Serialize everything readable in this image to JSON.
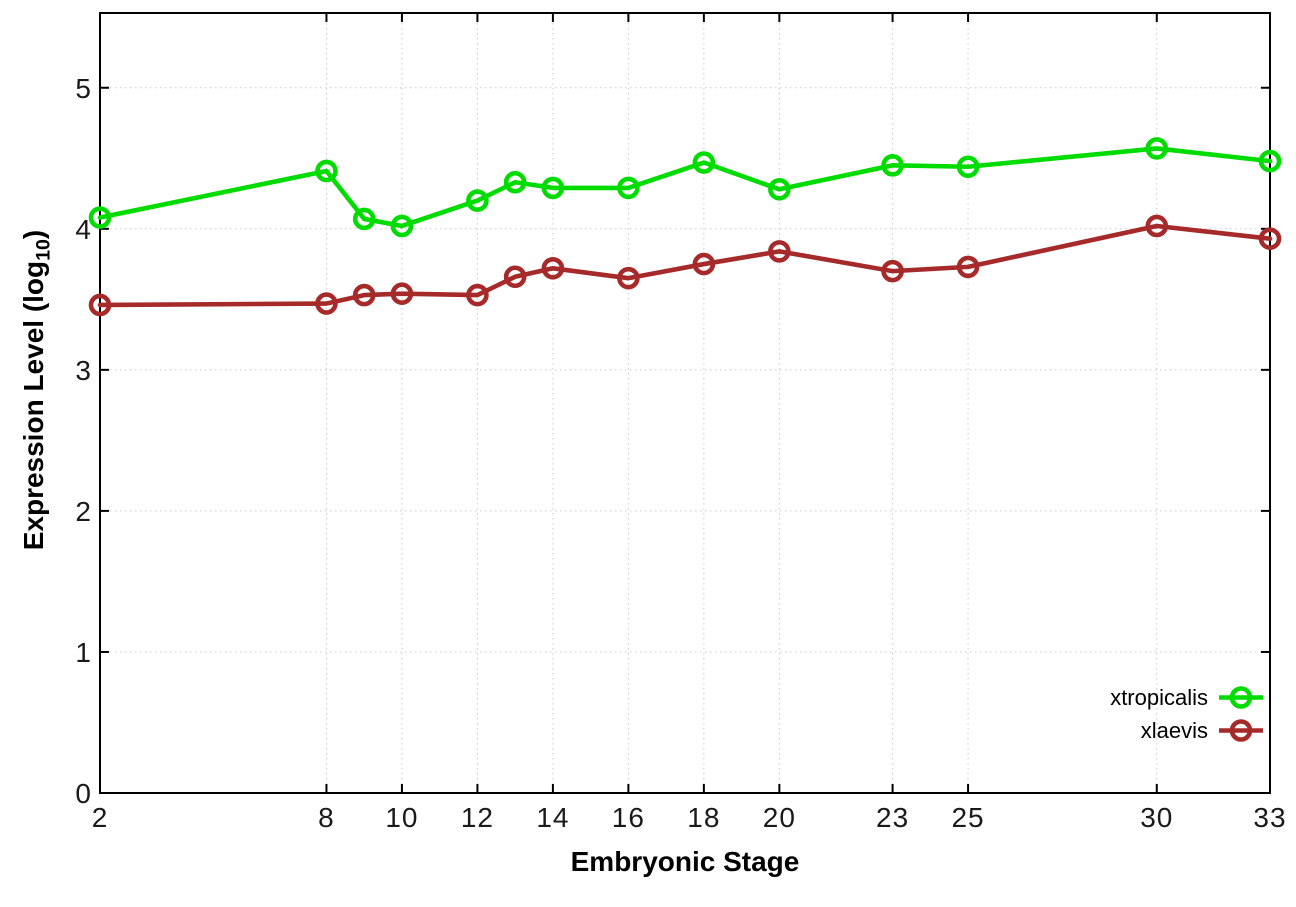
{
  "chart_data": {
    "type": "line",
    "title": "",
    "xlabel": "Embryonic Stage",
    "ylabel": "Expression Level (log10)",
    "ylabel_parts": {
      "prefix": "Expression Level (log",
      "subscript": "10",
      "suffix": ")"
    },
    "xlim": [
      2,
      33
    ],
    "ylim": [
      0,
      5.53
    ],
    "xticks": [
      2,
      8,
      10,
      12,
      14,
      16,
      18,
      20,
      23,
      25,
      30,
      33
    ],
    "yticks": [
      0,
      1,
      2,
      3,
      4,
      5
    ],
    "grid": true,
    "marker": "open-circle",
    "legend_position": "inside-bottom-right",
    "x": [
      2,
      8,
      9,
      10,
      12,
      13,
      14,
      16,
      18,
      20,
      23,
      25,
      30,
      33
    ],
    "series": [
      {
        "name": "xtropicalis",
        "color": "#00DC00",
        "values": [
          4.08,
          4.41,
          4.07,
          4.02,
          4.2,
          4.33,
          4.29,
          4.29,
          4.47,
          4.28,
          4.45,
          4.44,
          4.57,
          4.48
        ]
      },
      {
        "name": "xlaevis",
        "color": "#A62A2A",
        "values": [
          3.46,
          3.47,
          3.53,
          3.54,
          3.53,
          3.66,
          3.72,
          3.65,
          3.75,
          3.84,
          3.7,
          3.73,
          4.02,
          3.93
        ]
      }
    ]
  },
  "colors": {
    "background": "#ffffff",
    "border": "#000000",
    "grid": "#c9c9c9",
    "tick_text": "#1a1a1a"
  }
}
